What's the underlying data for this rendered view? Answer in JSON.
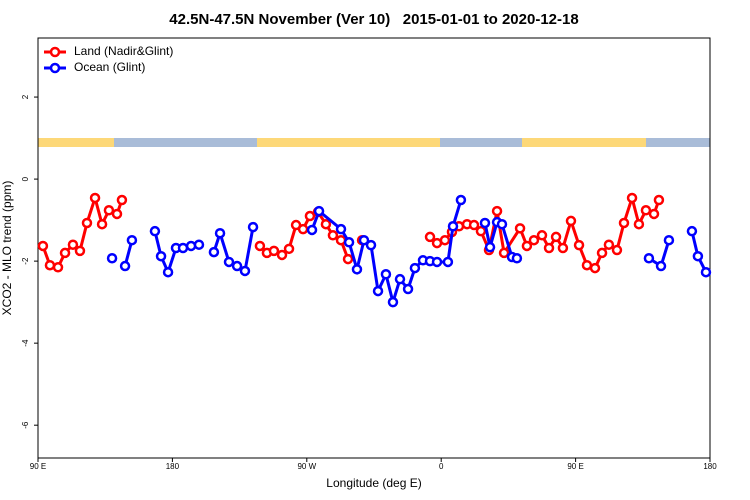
{
  "chart_data": {
    "type": "line",
    "title": "42.5N-47.5N November (Ver 10)   2015-01-01 to 2020-12-18",
    "xlabel": "Longitude (deg E)",
    "ylabel": "XCO2 - MLO trend (ppm)",
    "xlim": [
      90,
      540
    ],
    "xticks": [
      {
        "value": 90,
        "label": "90 E"
      },
      180,
      {
        "value": 270,
        "label": "90 W"
      },
      {
        "value": 360,
        "label": "0"
      },
      {
        "value": 450,
        "label": "90 E"
      },
      {
        "value": 540,
        "label": "180"
      }
    ],
    "ylim": [
      -6.8,
      3.44
    ],
    "yticks": [
      2,
      0,
      -2,
      -4,
      -6
    ],
    "legend": "top-left",
    "series": [
      {
        "name": "Land (Nadir&Glint)",
        "color": "#ff0000",
        "x": [
          93.3,
          98.0,
          103.4,
          108.1,
          113.4,
          118.1,
          122.8,
          128.2,
          132.9,
          137.5,
          142.9,
          146.2,
          null,
          238.6,
          243.3,
          248.0,
          253.4,
          258.1,
          262.8,
          267.5,
          272.1,
          277.5,
          282.8,
          287.5,
          292.9,
          297.6,
          null,
          307.0,
          null,
          352.5,
          357.2,
          362.5,
          367.2,
          371.9,
          377.3,
          382.0,
          386.6,
          392.0,
          397.4,
          402.1,
          412.8,
          417.4,
          422.1,
          427.5,
          432.2,
          436.9,
          441.5,
          446.9,
          452.3,
          457.6,
          463.0,
          467.7,
          472.3,
          477.7,
          482.4,
          487.8,
          492.4,
          497.1,
          502.5,
          505.8
        ],
        "values": [
          -1.63,
          -2.1,
          -2.15,
          -1.8,
          -1.6,
          -1.75,
          -1.07,
          -0.46,
          -1.1,
          -0.76,
          -0.85,
          -0.51,
          null,
          -1.63,
          -1.8,
          -1.75,
          -1.85,
          -1.7,
          -1.12,
          -1.22,
          -0.9,
          -0.8,
          -1.1,
          -1.37,
          -1.49,
          -1.95,
          null,
          -1.49,
          null,
          -1.41,
          -1.56,
          -1.49,
          -1.29,
          -1.15,
          -1.1,
          -1.12,
          -1.27,
          -1.73,
          -0.78,
          -1.8,
          -1.2,
          -1.63,
          -1.49,
          -1.37,
          -1.68,
          -1.41,
          -1.68,
          -1.02,
          -1.61,
          -2.1,
          -2.17,
          -1.8,
          -1.6,
          -1.73,
          -1.07,
          -0.46,
          -1.1,
          -0.76,
          -0.85,
          -0.51
        ]
      },
      {
        "name": "Ocean (Glint)",
        "color": "#0000ff",
        "x": [
          139.6,
          null,
          148.3,
          152.9,
          null,
          168.3,
          172.4,
          177.1,
          182.4,
          187.1,
          192.5,
          197.8,
          null,
          207.8,
          211.9,
          217.9,
          223.3,
          228.6,
          234.0,
          null,
          273.5,
          278.2,
          292.9,
          298.3,
          303.6,
          308.3,
          313.0,
          317.7,
          323.0,
          327.7,
          332.4,
          337.8,
          342.4,
          347.8,
          352.5,
          357.2,
          364.5,
          367.9,
          373.2,
          null,
          389.3,
          392.7,
          397.4,
          400.7,
          407.4,
          410.7,
          null,
          499.1,
          507.2,
          512.5,
          null,
          527.9,
          531.9,
          537.3
        ],
        "values": [
          -1.93,
          null,
          -2.12,
          -1.49,
          null,
          -1.27,
          -1.88,
          -2.27,
          -1.68,
          -1.68,
          -1.63,
          -1.6,
          null,
          -1.78,
          -1.32,
          -2.02,
          -2.12,
          -2.24,
          -1.17,
          null,
          -1.24,
          -0.78,
          -1.22,
          -1.54,
          -2.2,
          -1.49,
          -1.61,
          -2.73,
          -2.32,
          -3.0,
          -2.44,
          -2.68,
          -2.17,
          -1.98,
          -2.0,
          -2.02,
          -2.02,
          -1.15,
          -0.51,
          null,
          -1.07,
          -1.66,
          -1.05,
          -1.1,
          -1.9,
          -1.93,
          null,
          -1.93,
          -2.12,
          -1.49,
          null,
          -1.27,
          -1.88,
          -2.27
        ]
      }
    ]
  }
}
